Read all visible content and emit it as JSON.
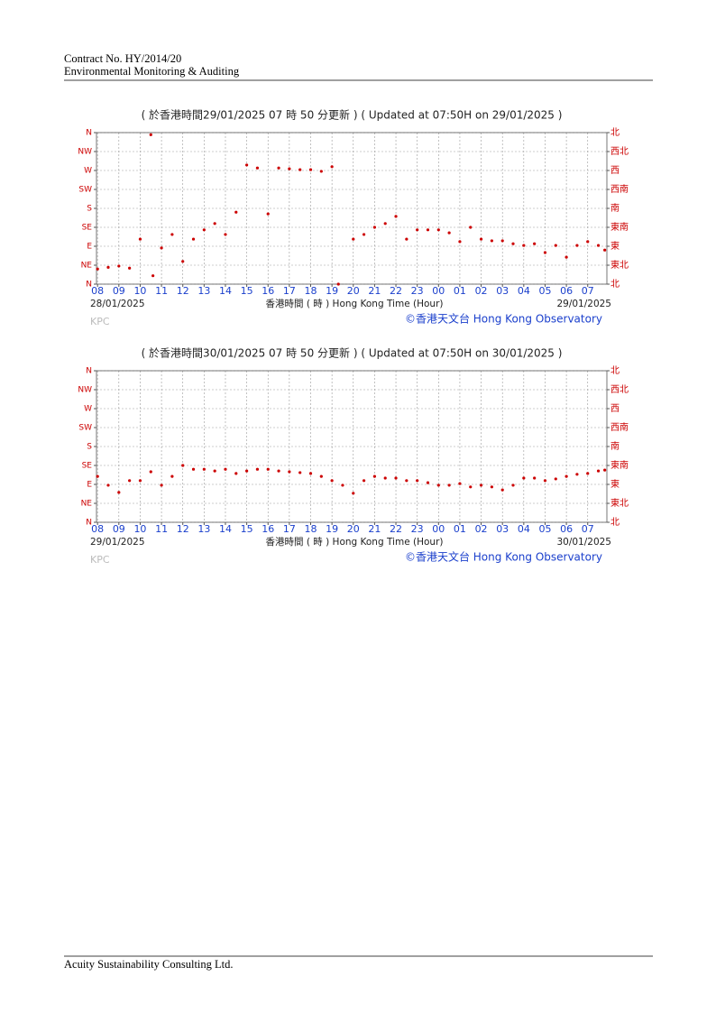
{
  "header": {
    "lines": [
      "Contract No. HY/2014/20",
      "Environmental Monitoring & Auditing"
    ]
  },
  "footer": {
    "text": "Acuity Sustainability Consulting Ltd."
  },
  "chart_data": [
    {
      "type": "scatter",
      "title": "( 於香港時間29/01/2025 07 時 50 分更新 ) ( Updated at 07:50H on 29/01/2025 )",
      "x_label": "香港時間 ( 時 )  Hong Kong Time (Hour)",
      "start_date": "28/01/2025",
      "end_date": "29/01/2025",
      "source": "©香港天文台 Hong Kong Observatory",
      "watermark": "KPC",
      "color": "#cc0000",
      "grid": true,
      "xlim": [
        -0.05,
        23.9
      ],
      "ylim": [
        0,
        360
      ],
      "y2lim": [
        0,
        360
      ],
      "xticks": [
        {
          "value": 0,
          "label": "08"
        },
        {
          "value": 1,
          "label": "09"
        },
        {
          "value": 2,
          "label": "10"
        },
        {
          "value": 3,
          "label": "11"
        },
        {
          "value": 4,
          "label": "12"
        },
        {
          "value": 5,
          "label": "13"
        },
        {
          "value": 6,
          "label": "14"
        },
        {
          "value": 7,
          "label": "15"
        },
        {
          "value": 8,
          "label": "16"
        },
        {
          "value": 9,
          "label": "17"
        },
        {
          "value": 10,
          "label": "18"
        },
        {
          "value": 11,
          "label": "19"
        },
        {
          "value": 12,
          "label": "20"
        },
        {
          "value": 13,
          "label": "21"
        },
        {
          "value": 14,
          "label": "22"
        },
        {
          "value": 15,
          "label": "23"
        },
        {
          "value": 16,
          "label": "00"
        },
        {
          "value": 17,
          "label": "01"
        },
        {
          "value": 18,
          "label": "02"
        },
        {
          "value": 19,
          "label": "03"
        },
        {
          "value": 20,
          "label": "04"
        },
        {
          "value": 21,
          "label": "05"
        },
        {
          "value": 22,
          "label": "06"
        },
        {
          "value": 23,
          "label": "07"
        }
      ],
      "yticks": [
        {
          "value": 0,
          "label": "N"
        },
        {
          "value": 45,
          "label": "NE"
        },
        {
          "value": 90,
          "label": "E"
        },
        {
          "value": 135,
          "label": "SE"
        },
        {
          "value": 180,
          "label": "S"
        },
        {
          "value": 225,
          "label": "SW"
        },
        {
          "value": 270,
          "label": "W"
        },
        {
          "value": 315,
          "label": "NW"
        },
        {
          "value": 360,
          "label": "N"
        }
      ],
      "y2ticks": [
        {
          "value": 0,
          "label": "北"
        },
        {
          "value": 45,
          "label": "東北"
        },
        {
          "value": 90,
          "label": "東"
        },
        {
          "value": 135,
          "label": "東南"
        },
        {
          "value": 180,
          "label": "南"
        },
        {
          "value": 225,
          "label": "西南"
        },
        {
          "value": 270,
          "label": "西"
        },
        {
          "value": 315,
          "label": "西北"
        },
        {
          "value": 360,
          "label": "北"
        }
      ],
      "x": [
        0,
        0.5,
        1,
        1.5,
        2,
        2.5,
        2.6,
        3,
        3.5,
        4,
        4.5,
        5,
        5.5,
        6,
        6.5,
        7,
        7.5,
        8,
        8.5,
        9,
        9.5,
        10,
        10.5,
        11,
        11.3,
        12,
        12.5,
        13,
        13.5,
        14,
        14.5,
        15,
        15.5,
        16,
        16.5,
        17,
        17.5,
        18,
        18.5,
        19,
        19.5,
        20,
        20.5,
        21,
        21.5,
        22,
        22.5,
        23,
        23.5,
        23.8
      ],
      "values": [
        36,
        40,
        43,
        38,
        107,
        355,
        20,
        86,
        118,
        54,
        107,
        129,
        144,
        118,
        171,
        283,
        276,
        167,
        276,
        274,
        272,
        272,
        268,
        279,
        0,
        107,
        118,
        135,
        144,
        161,
        107,
        129,
        129,
        129,
        122,
        101,
        135,
        107,
        103,
        103,
        96,
        92,
        96,
        75,
        92,
        64,
        92,
        101,
        92,
        81
      ]
    },
    {
      "type": "scatter",
      "title": "( 於香港時間30/01/2025 07 時 50 分更新 ) ( Updated at 07:50H on 30/01/2025 )",
      "x_label": "香港時間 ( 時 )  Hong Kong Time (Hour)",
      "start_date": "29/01/2025",
      "end_date": "30/01/2025",
      "source": "©香港天文台 Hong Kong Observatory",
      "watermark": "KPC",
      "color": "#cc0000",
      "grid": true,
      "xlim": [
        -0.05,
        23.9
      ],
      "ylim": [
        0,
        360
      ],
      "y2lim": [
        0,
        360
      ],
      "xticks": [
        {
          "value": 0,
          "label": "08"
        },
        {
          "value": 1,
          "label": "09"
        },
        {
          "value": 2,
          "label": "10"
        },
        {
          "value": 3,
          "label": "11"
        },
        {
          "value": 4,
          "label": "12"
        },
        {
          "value": 5,
          "label": "13"
        },
        {
          "value": 6,
          "label": "14"
        },
        {
          "value": 7,
          "label": "15"
        },
        {
          "value": 8,
          "label": "16"
        },
        {
          "value": 9,
          "label": "17"
        },
        {
          "value": 10,
          "label": "18"
        },
        {
          "value": 11,
          "label": "19"
        },
        {
          "value": 12,
          "label": "20"
        },
        {
          "value": 13,
          "label": "21"
        },
        {
          "value": 14,
          "label": "22"
        },
        {
          "value": 15,
          "label": "23"
        },
        {
          "value": 16,
          "label": "00"
        },
        {
          "value": 17,
          "label": "01"
        },
        {
          "value": 18,
          "label": "02"
        },
        {
          "value": 19,
          "label": "03"
        },
        {
          "value": 20,
          "label": "04"
        },
        {
          "value": 21,
          "label": "05"
        },
        {
          "value": 22,
          "label": "06"
        },
        {
          "value": 23,
          "label": "07"
        }
      ],
      "yticks": [
        {
          "value": 0,
          "label": "N"
        },
        {
          "value": 45,
          "label": "NE"
        },
        {
          "value": 90,
          "label": "E"
        },
        {
          "value": 135,
          "label": "SE"
        },
        {
          "value": 180,
          "label": "S"
        },
        {
          "value": 225,
          "label": "SW"
        },
        {
          "value": 270,
          "label": "W"
        },
        {
          "value": 315,
          "label": "NW"
        },
        {
          "value": 360,
          "label": "N"
        }
      ],
      "y2ticks": [
        {
          "value": 0,
          "label": "北"
        },
        {
          "value": 45,
          "label": "東北"
        },
        {
          "value": 90,
          "label": "東"
        },
        {
          "value": 135,
          "label": "東南"
        },
        {
          "value": 180,
          "label": "南"
        },
        {
          "value": 225,
          "label": "西南"
        },
        {
          "value": 270,
          "label": "西"
        },
        {
          "value": 315,
          "label": "西北"
        },
        {
          "value": 360,
          "label": "北"
        }
      ],
      "x": [
        0,
        0.5,
        1,
        1.5,
        2,
        2.5,
        3,
        3.5,
        4,
        4.5,
        5,
        5.5,
        6,
        6.5,
        7,
        7.5,
        8,
        8.5,
        9,
        9.5,
        10,
        10.5,
        11,
        11.5,
        12,
        12.5,
        13,
        13.5,
        14,
        14.5,
        15,
        15.5,
        16,
        16.5,
        17,
        17.5,
        18,
        18.5,
        19,
        19.5,
        20,
        20.5,
        21,
        21.5,
        22,
        22.5,
        23,
        23.5,
        23.8
      ],
      "values": [
        109,
        88,
        71,
        99,
        99,
        120,
        88,
        109,
        135,
        126,
        126,
        122,
        126,
        116,
        122,
        126,
        126,
        122,
        120,
        118,
        116,
        109,
        99,
        88,
        69,
        99,
        109,
        105,
        105,
        99,
        99,
        94,
        88,
        88,
        92,
        84,
        88,
        84,
        77,
        88,
        105,
        105,
        99,
        103,
        109,
        114,
        116,
        122,
        124
      ]
    }
  ]
}
